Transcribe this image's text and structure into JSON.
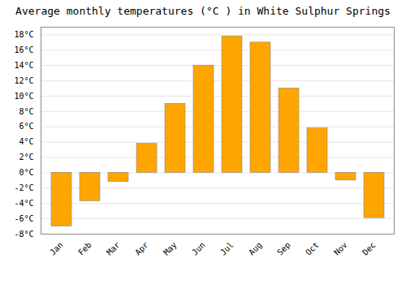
{
  "chart_data": {
    "type": "bar",
    "title": "Average monthly temperatures (°C ) in White Sulphur Springs",
    "categories": [
      "Jan",
      "Feb",
      "Mar",
      "Apr",
      "May",
      "Jun",
      "Jul",
      "Aug",
      "Sep",
      "Oct",
      "Nov",
      "Dec"
    ],
    "values": [
      -7.0,
      -3.7,
      -1.2,
      3.8,
      9.0,
      14.0,
      17.8,
      17.0,
      11.0,
      5.8,
      -1.0,
      -5.9
    ],
    "color": "#FFA500",
    "ylim": [
      -8,
      19
    ],
    "yticks": [
      {
        "value": -8,
        "label": "-8°C"
      },
      {
        "value": -6,
        "label": "-6°C"
      },
      {
        "value": -4,
        "label": "-4°C"
      },
      {
        "value": -2,
        "label": "-2°C"
      },
      {
        "value": 0,
        "label": "0°C"
      },
      {
        "value": 2,
        "label": "2°C"
      },
      {
        "value": 4,
        "label": "4°C"
      },
      {
        "value": 6,
        "label": "6°C"
      },
      {
        "value": 8,
        "label": "8°C"
      },
      {
        "value": 10,
        "label": "10°C"
      },
      {
        "value": 12,
        "label": "12°C"
      },
      {
        "value": 14,
        "label": "14°C"
      },
      {
        "value": 16,
        "label": "16°C"
      },
      {
        "value": 18,
        "label": "18°C"
      }
    ],
    "grid": true
  }
}
